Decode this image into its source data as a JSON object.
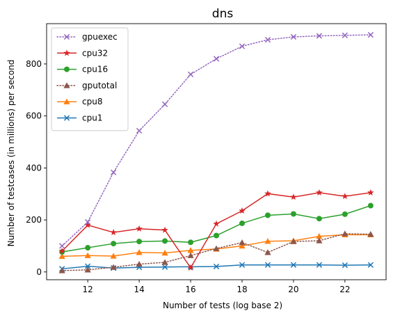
{
  "chart_data": {
    "type": "line",
    "title": "dns",
    "xlabel": "Number of tests (log base 2)",
    "ylabel": "Number of testcases (in millions) per second",
    "xlim": [
      10.4,
      23.6
    ],
    "ylim": [
      -30,
      955
    ],
    "xticks": [
      12,
      14,
      16,
      18,
      20,
      22
    ],
    "yticks": [
      0,
      200,
      400,
      600,
      800
    ],
    "grid": false,
    "legend_position": "top-left",
    "x": [
      11,
      12,
      13,
      14,
      15,
      16,
      17,
      18,
      19,
      20,
      21,
      22,
      23
    ],
    "series": [
      {
        "name": "gpuexec",
        "color": "#9467bd",
        "linestyle": "dotted",
        "marker": "x",
        "values": [
          100,
          192,
          383,
          543,
          645,
          760,
          820,
          868,
          893,
          904,
          908,
          910,
          912
        ]
      },
      {
        "name": "cpu32",
        "color": "#d62728",
        "linestyle": "solid",
        "marker": "star",
        "values": [
          80,
          180,
          152,
          166,
          161,
          16,
          185,
          235,
          301,
          288,
          305,
          291,
          305
        ]
      },
      {
        "name": "cpu16",
        "color": "#2ca02c",
        "linestyle": "solid",
        "marker": "circle",
        "values": [
          77,
          93,
          109,
          117,
          119,
          114,
          140,
          187,
          218,
          223,
          205,
          222,
          255
        ]
      },
      {
        "name": "gputotal",
        "color": "#8c564b",
        "linestyle": "dotted",
        "marker": "triangle",
        "values": [
          5,
          8,
          18,
          30,
          37,
          63,
          90,
          113,
          75,
          117,
          120,
          147,
          145
        ]
      },
      {
        "name": "cpu8",
        "color": "#ff7f0e",
        "linestyle": "solid",
        "marker": "triangle",
        "values": [
          60,
          63,
          61,
          75,
          73,
          83,
          88,
          100,
          118,
          120,
          137,
          143,
          143
        ]
      },
      {
        "name": "cpu1",
        "color": "#1f77b4",
        "linestyle": "solid",
        "marker": "x",
        "values": [
          12,
          22,
          15,
          18,
          19,
          20,
          21,
          27,
          27,
          27,
          27,
          26,
          27
        ]
      }
    ]
  }
}
